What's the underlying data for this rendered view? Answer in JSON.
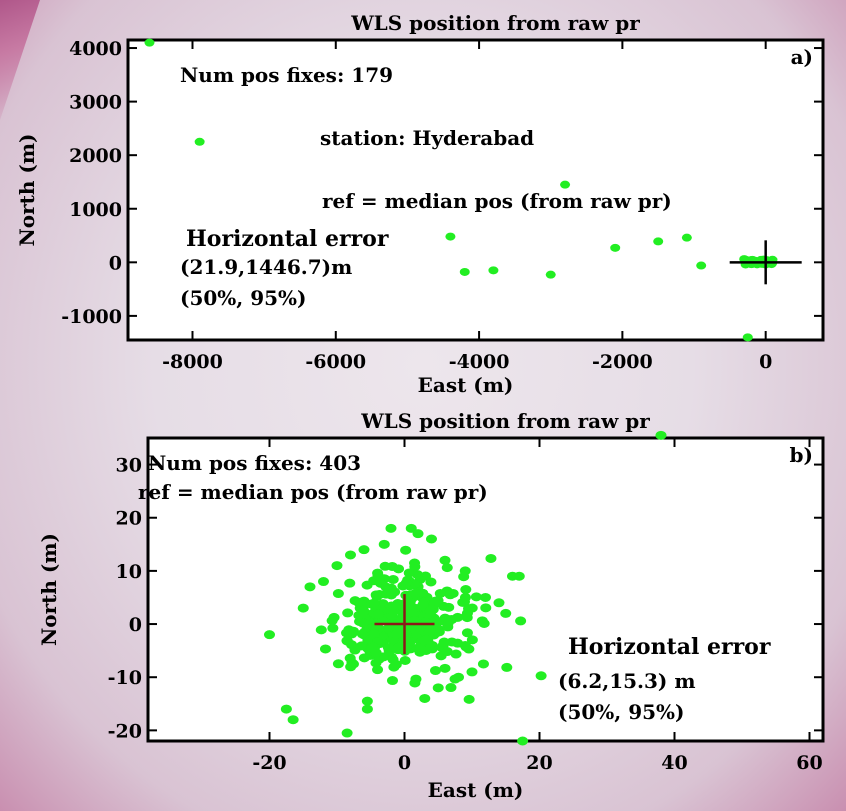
{
  "colors": {
    "points": "#22ee22",
    "median_cross_a": "#000000",
    "median_cross_b": "#8b1a1a",
    "frame": "#000000",
    "plot_bg": "#ffffff"
  },
  "chart_data": [
    {
      "type": "scatter",
      "panel": "a)",
      "title": "WLS position from raw pr",
      "xlabel": "East (m)",
      "ylabel": "North (m)",
      "xlim": [
        -8900,
        800
      ],
      "ylim": [
        -1450,
        4150
      ],
      "xticks": [
        -8000,
        -6000,
        -4000,
        -2000,
        0
      ],
      "yticks": [
        -1000,
        0,
        1000,
        2000,
        3000,
        4000
      ],
      "x": [
        -8600,
        -7900,
        -2800,
        -4400,
        -4200,
        -3800,
        -3000,
        -2100,
        -1500,
        -1100,
        -900,
        -300,
        -200,
        -100,
        -50,
        0,
        40,
        -30,
        20,
        -250
      ],
      "y": [
        4100,
        2250,
        1450,
        480,
        -180,
        -150,
        -230,
        270,
        390,
        460,
        -60,
        60,
        40,
        20,
        -30,
        10,
        0,
        50,
        -20,
        -1400
      ],
      "median_marker": [
        0,
        0
      ],
      "annotations": [
        "Num pos fixes: 179",
        "station: Hyderabad",
        "ref = median pos (from raw pr)",
        "Horizontal error",
        "(21.9,1446.7)m",
        "(50%, 95%)"
      ]
    },
    {
      "type": "scatter",
      "panel": "b)",
      "title": "WLS position from raw pr",
      "xlabel": "East (m)",
      "ylabel": "North (m)",
      "xlim": [
        -38,
        62
      ],
      "ylim": [
        -22,
        35
      ],
      "xticks": [
        -20,
        0,
        20,
        40,
        60
      ],
      "yticks": [
        -20,
        -10,
        0,
        10,
        20,
        30
      ],
      "x": [
        38,
        17.5,
        -8.5,
        -16.5,
        -17.5,
        -20,
        -5.5,
        -5.5,
        3,
        5,
        8,
        10,
        -2,
        1,
        2,
        4,
        -3,
        -6,
        -8,
        -10,
        -12,
        -14,
        -15,
        6,
        9,
        12,
        14,
        15,
        16,
        17
      ],
      "y": [
        35.5,
        -22,
        -20.5,
        -18,
        -16,
        -2,
        -14.5,
        -16,
        -14,
        -12,
        -10,
        -9,
        18,
        18,
        17,
        16,
        15,
        14,
        13,
        11,
        8,
        7,
        3,
        12,
        10,
        5,
        4,
        2,
        9,
        9
      ],
      "median_marker": [
        0,
        0
      ],
      "annotations": [
        "Num pos fixes: 403",
        "ref = median pos (from raw pr)",
        "Horizontal error",
        "(6.2,15.3) m",
        "(50%, 95%)"
      ]
    }
  ]
}
